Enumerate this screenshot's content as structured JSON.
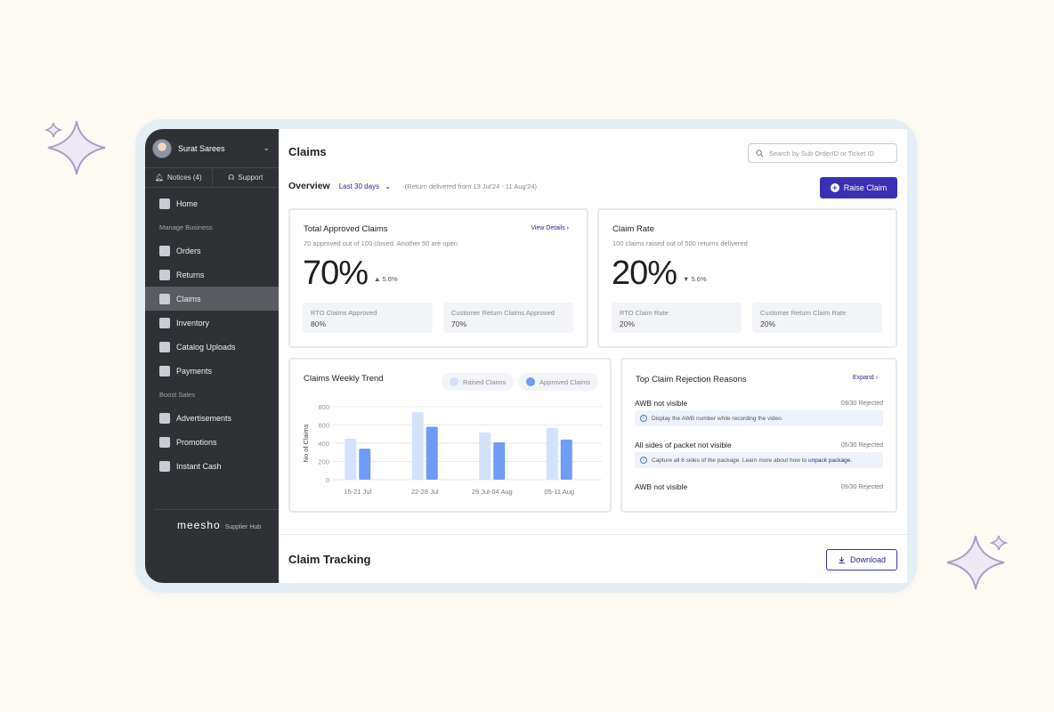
{
  "profile": {
    "name": "Surat Sarees"
  },
  "top_links": {
    "notices": "Notices (4)",
    "support": "Support"
  },
  "nav": {
    "home": "Home",
    "section_manage": "Manage Business",
    "orders": "Orders",
    "returns": "Returns",
    "claims": "Claims",
    "inventory": "Inventory",
    "catalog_uploads": "Catalog Uploads",
    "payments": "Payments",
    "section_boost": "Boost Sales",
    "advertisements": "Advertisements",
    "promotions": "Promotions",
    "instant_cash": "Instant Cash"
  },
  "brand": {
    "logo": "meesho",
    "sub": "Supplier Hub"
  },
  "header": {
    "title": "Claims",
    "search_placeholder": "Search by Sub OrderID or Ticket ID",
    "overview_label": "Overview",
    "date_filter": "Last 30 days",
    "date_note": "(Return delivered from 13 Jul'24 - 11 Aug'24)",
    "raise_claim": "Raise Claim"
  },
  "approved": {
    "title": "Total Approved Claims",
    "subtitle": "70 approved out of 100 closed. Another 50 are open",
    "link": "View Details",
    "value": "70%",
    "delta": "5.6%",
    "delta_direction": "up",
    "rto_label": "RTO Claims Approved",
    "rto_value": "80%",
    "cust_label": "Customer Return Claims Approved",
    "cust_value": "70%"
  },
  "rate": {
    "title": "Claim Rate",
    "subtitle": "100 claims raised out of 500 returns delivered",
    "value": "20%",
    "delta": "5.6%",
    "delta_direction": "down",
    "rto_label": "RTO Claim Rate",
    "rto_value": "20%",
    "cust_label": "Customer Return Claim Rate",
    "cust_value": "20%"
  },
  "trend": {
    "title": "Claims Weekly Trend",
    "legend_raised": "Raised Claims",
    "legend_approved": "Approved Claims",
    "color_raised": "#d3e1fb",
    "color_approved": "#6f9cf6"
  },
  "chart_data": {
    "type": "bar",
    "title": "Claims Weekly Trend",
    "xlabel": "",
    "ylabel": "No of Claims",
    "ylim": [
      0,
      800
    ],
    "yticks": [
      "0",
      "200",
      "400",
      "600",
      "800"
    ],
    "categories": [
      "15-21 Jul",
      "22-28 Jul",
      "29 Jul-04 Aug",
      "05-11 Aug"
    ],
    "series": [
      {
        "name": "Raised Claims",
        "values": [
          450,
          740,
          520,
          570
        ]
      },
      {
        "name": "Approved Claims",
        "values": [
          340,
          580,
          410,
          440
        ]
      }
    ],
    "legend": "top-right",
    "grid": true
  },
  "reasons": {
    "title": "Top Claim Rejection Reasons",
    "link": "Expand",
    "items": [
      {
        "name": "AWB not visible",
        "count": "09/30 Rejected",
        "note": "Display the AWB number while recording the video."
      },
      {
        "name": "All sides of packet not visible",
        "count": "05/30 Rejected",
        "note": "Capture all 6 sides of the package. Learn more about how to",
        "note_link": "unpack package."
      },
      {
        "name": "AWB not visible",
        "count": "09/30 Rejected"
      }
    ]
  },
  "tracking": {
    "title": "Claim Tracking",
    "download": "Download"
  },
  "colors": {
    "accent": "#3b30b5",
    "sidebar": "#2f3135"
  }
}
